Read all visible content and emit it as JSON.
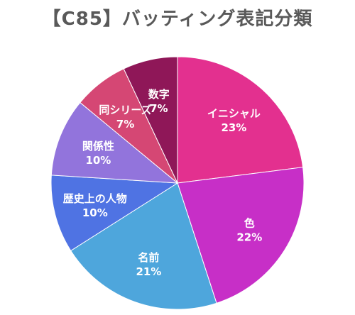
{
  "chart_data": {
    "type": "pie",
    "title": "【C85】バッティング表記分類",
    "slices": [
      {
        "label": "イニシャル",
        "value": 23,
        "value_label": "23%",
        "color": "#e3308f"
      },
      {
        "label": "色",
        "value": 22,
        "value_label": "22%",
        "color": "#c72fc7"
      },
      {
        "label": "名前",
        "value": 21,
        "value_label": "21%",
        "color": "#4ea6dc"
      },
      {
        "label": "歴史上の人物",
        "value": 10,
        "value_label": "10%",
        "color": "#4f73e3"
      },
      {
        "label": "関係性",
        "value": 10,
        "value_label": "10%",
        "color": "#9274dc"
      },
      {
        "label": "同シリーズ",
        "value": 7,
        "value_label": "7%",
        "color": "#d54774"
      },
      {
        "label": "数字",
        "value": 7,
        "value_label": "7%",
        "color": "#8f1758"
      }
    ],
    "start_angle_deg": 0,
    "direction": "clockwise",
    "legend": "none",
    "data_labels": "inside"
  }
}
